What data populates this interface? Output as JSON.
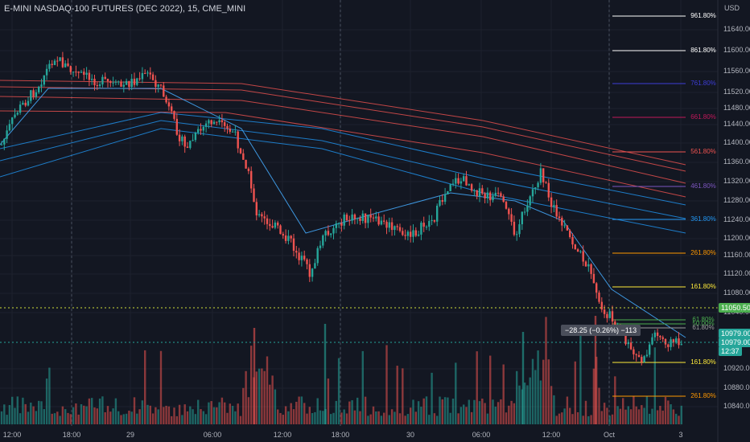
{
  "header": {
    "title": "E-MINI NASDAQ-100 FUTURES (DEC 2022), 15, CME_MINI",
    "currency": "USD"
  },
  "colors": {
    "bg": "#131722",
    "up": "#26a69a",
    "down": "#ef5350",
    "grid": "#1e222d"
  },
  "price_axis": {
    "labels": [
      "11640.00",
      "11600.00",
      "11560.00",
      "11520.00",
      "11480.00",
      "11440.00",
      "11400.00",
      "11360.00",
      "11320.00",
      "11280.00",
      "11240.00",
      "11200.00",
      "11160.00",
      "11120.00",
      "11080.00",
      "11040.00",
      "10920.00",
      "10880.00",
      "10840.00"
    ]
  },
  "time_axis": {
    "labels": [
      "12:00",
      "18:00",
      "29",
      "06:00",
      "12:00",
      "18:00",
      "30",
      "06:00",
      "12:00",
      "Oct",
      "3"
    ]
  },
  "fib_levels": [
    {
      "label": "961.80%",
      "color": "#ffffff"
    },
    {
      "label": "861.80%",
      "color": "#ffffff"
    },
    {
      "label": "761.80%",
      "color": "#3d3dd6"
    },
    {
      "label": "661.80%",
      "color": "#c2185b"
    },
    {
      "label": "561.80%",
      "color": "#ef5350"
    },
    {
      "label": "461.80%",
      "color": "#7e57c2"
    },
    {
      "label": "361.80%",
      "color": "#2196f3"
    },
    {
      "label": "261.80%",
      "color": "#ff9800"
    },
    {
      "label": "161.80%",
      "color": "#ffeb3b"
    },
    {
      "label": "61.80%",
      "color": "#4caf50"
    },
    {
      "label": "50.00%",
      "color": "#4caf50"
    },
    {
      "label": "61.80%",
      "color": "#9e9e9e"
    },
    {
      "label": "161.80%",
      "color": "#ffeb3b"
    },
    {
      "label": "261.80%",
      "color": "#ff9800"
    }
  ],
  "badges": {
    "level_price": "11050.50",
    "last_price": "10979.00",
    "last_price2": "10979.00",
    "countdown": "12:37"
  },
  "measure": {
    "text": "−28.25 (−0.26%) −113"
  }
}
